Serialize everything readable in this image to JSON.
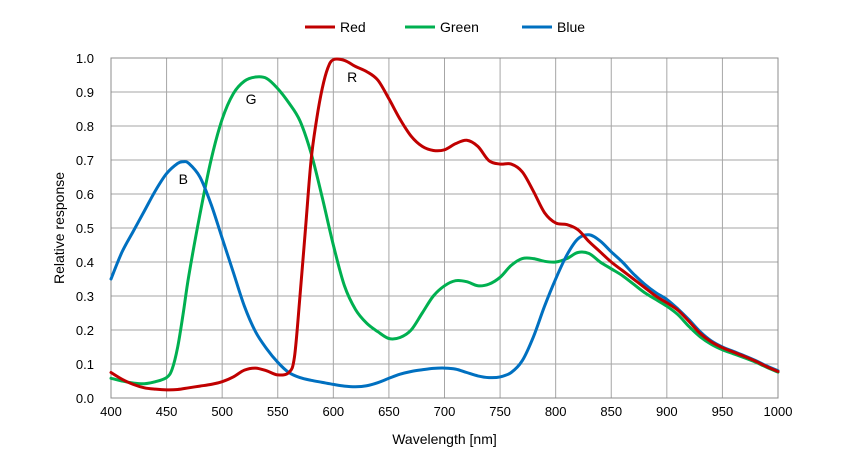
{
  "chart_data": {
    "type": "line",
    "xlabel": "Wavelength [nm]",
    "ylabel": "Relative response",
    "xlim": [
      400,
      1000
    ],
    "ylim": [
      0,
      1.0
    ],
    "xticks": [
      400,
      450,
      500,
      550,
      600,
      650,
      700,
      750,
      800,
      850,
      900,
      950,
      1000
    ],
    "yticks": [
      0.0,
      0.1,
      0.2,
      0.3,
      0.4,
      0.5,
      0.6,
      0.7,
      0.8,
      0.9,
      1.0
    ],
    "ytick_labels": [
      "0.0",
      "0.1",
      "0.2",
      "0.3",
      "0.4",
      "0.5",
      "0.6",
      "0.7",
      "0.8",
      "0.9",
      "1.0"
    ],
    "grid": true,
    "legend_position": "top-center",
    "series": [
      {
        "name": "Red",
        "color": "#c00000",
        "points": [
          [
            400,
            0.075
          ],
          [
            410,
            0.055
          ],
          [
            420,
            0.04
          ],
          [
            430,
            0.03
          ],
          [
            440,
            0.026
          ],
          [
            450,
            0.024
          ],
          [
            460,
            0.025
          ],
          [
            470,
            0.03
          ],
          [
            480,
            0.035
          ],
          [
            490,
            0.04
          ],
          [
            500,
            0.048
          ],
          [
            510,
            0.062
          ],
          [
            520,
            0.082
          ],
          [
            530,
            0.088
          ],
          [
            540,
            0.08
          ],
          [
            550,
            0.068
          ],
          [
            560,
            0.075
          ],
          [
            565,
            0.12
          ],
          [
            570,
            0.3
          ],
          [
            575,
            0.5
          ],
          [
            580,
            0.7
          ],
          [
            585,
            0.82
          ],
          [
            590,
            0.91
          ],
          [
            595,
            0.97
          ],
          [
            600,
            0.995
          ],
          [
            610,
            0.993
          ],
          [
            620,
            0.975
          ],
          [
            630,
            0.96
          ],
          [
            640,
            0.935
          ],
          [
            650,
            0.88
          ],
          [
            660,
            0.82
          ],
          [
            670,
            0.77
          ],
          [
            680,
            0.74
          ],
          [
            690,
            0.728
          ],
          [
            700,
            0.73
          ],
          [
            710,
            0.748
          ],
          [
            720,
            0.758
          ],
          [
            730,
            0.74
          ],
          [
            740,
            0.698
          ],
          [
            750,
            0.688
          ],
          [
            760,
            0.688
          ],
          [
            770,
            0.665
          ],
          [
            780,
            0.608
          ],
          [
            790,
            0.545
          ],
          [
            800,
            0.515
          ],
          [
            810,
            0.51
          ],
          [
            820,
            0.495
          ],
          [
            830,
            0.46
          ],
          [
            840,
            0.43
          ],
          [
            850,
            0.4
          ],
          [
            860,
            0.375
          ],
          [
            870,
            0.35
          ],
          [
            880,
            0.325
          ],
          [
            890,
            0.3
          ],
          [
            900,
            0.28
          ],
          [
            910,
            0.258
          ],
          [
            920,
            0.225
          ],
          [
            930,
            0.19
          ],
          [
            940,
            0.165
          ],
          [
            950,
            0.148
          ],
          [
            960,
            0.135
          ],
          [
            970,
            0.122
          ],
          [
            980,
            0.108
          ],
          [
            990,
            0.092
          ],
          [
            1000,
            0.078
          ]
        ]
      },
      {
        "name": "Green",
        "color": "#00b050",
        "points": [
          [
            400,
            0.058
          ],
          [
            410,
            0.05
          ],
          [
            420,
            0.044
          ],
          [
            430,
            0.042
          ],
          [
            440,
            0.048
          ],
          [
            450,
            0.06
          ],
          [
            455,
            0.085
          ],
          [
            460,
            0.15
          ],
          [
            465,
            0.25
          ],
          [
            470,
            0.36
          ],
          [
            480,
            0.54
          ],
          [
            490,
            0.7
          ],
          [
            500,
            0.82
          ],
          [
            510,
            0.895
          ],
          [
            520,
            0.932
          ],
          [
            530,
            0.944
          ],
          [
            540,
            0.94
          ],
          [
            550,
            0.91
          ],
          [
            560,
            0.868
          ],
          [
            570,
            0.815
          ],
          [
            580,
            0.72
          ],
          [
            590,
            0.59
          ],
          [
            600,
            0.45
          ],
          [
            610,
            0.33
          ],
          [
            620,
            0.26
          ],
          [
            630,
            0.22
          ],
          [
            640,
            0.195
          ],
          [
            650,
            0.175
          ],
          [
            660,
            0.178
          ],
          [
            670,
            0.2
          ],
          [
            680,
            0.25
          ],
          [
            690,
            0.3
          ],
          [
            700,
            0.33
          ],
          [
            710,
            0.345
          ],
          [
            720,
            0.342
          ],
          [
            730,
            0.33
          ],
          [
            740,
            0.335
          ],
          [
            750,
            0.355
          ],
          [
            760,
            0.39
          ],
          [
            770,
            0.41
          ],
          [
            780,
            0.41
          ],
          [
            790,
            0.402
          ],
          [
            800,
            0.4
          ],
          [
            810,
            0.41
          ],
          [
            820,
            0.428
          ],
          [
            830,
            0.425
          ],
          [
            840,
            0.4
          ],
          [
            850,
            0.38
          ],
          [
            860,
            0.36
          ],
          [
            870,
            0.335
          ],
          [
            880,
            0.31
          ],
          [
            890,
            0.29
          ],
          [
            900,
            0.27
          ],
          [
            910,
            0.245
          ],
          [
            920,
            0.21
          ],
          [
            930,
            0.18
          ],
          [
            940,
            0.158
          ],
          [
            950,
            0.142
          ],
          [
            960,
            0.13
          ],
          [
            970,
            0.118
          ],
          [
            980,
            0.105
          ],
          [
            990,
            0.09
          ],
          [
            1000,
            0.076
          ]
        ]
      },
      {
        "name": "Blue",
        "color": "#0070c0",
        "points": [
          [
            400,
            0.35
          ],
          [
            410,
            0.43
          ],
          [
            420,
            0.49
          ],
          [
            430,
            0.55
          ],
          [
            440,
            0.61
          ],
          [
            450,
            0.66
          ],
          [
            460,
            0.69
          ],
          [
            465,
            0.695
          ],
          [
            470,
            0.69
          ],
          [
            480,
            0.65
          ],
          [
            490,
            0.57
          ],
          [
            500,
            0.47
          ],
          [
            510,
            0.37
          ],
          [
            520,
            0.27
          ],
          [
            530,
            0.195
          ],
          [
            540,
            0.145
          ],
          [
            550,
            0.105
          ],
          [
            560,
            0.075
          ],
          [
            570,
            0.06
          ],
          [
            580,
            0.052
          ],
          [
            590,
            0.046
          ],
          [
            600,
            0.04
          ],
          [
            610,
            0.035
          ],
          [
            620,
            0.033
          ],
          [
            630,
            0.036
          ],
          [
            640,
            0.045
          ],
          [
            650,
            0.058
          ],
          [
            660,
            0.07
          ],
          [
            670,
            0.078
          ],
          [
            680,
            0.083
          ],
          [
            690,
            0.087
          ],
          [
            700,
            0.088
          ],
          [
            710,
            0.085
          ],
          [
            720,
            0.075
          ],
          [
            730,
            0.065
          ],
          [
            740,
            0.06
          ],
          [
            750,
            0.062
          ],
          [
            760,
            0.075
          ],
          [
            770,
            0.11
          ],
          [
            780,
            0.18
          ],
          [
            790,
            0.27
          ],
          [
            800,
            0.35
          ],
          [
            810,
            0.42
          ],
          [
            820,
            0.468
          ],
          [
            830,
            0.48
          ],
          [
            840,
            0.462
          ],
          [
            850,
            0.43
          ],
          [
            860,
            0.4
          ],
          [
            870,
            0.365
          ],
          [
            880,
            0.335
          ],
          [
            890,
            0.31
          ],
          [
            900,
            0.29
          ],
          [
            910,
            0.262
          ],
          [
            920,
            0.23
          ],
          [
            930,
            0.195
          ],
          [
            940,
            0.168
          ],
          [
            950,
            0.15
          ],
          [
            960,
            0.137
          ],
          [
            970,
            0.124
          ],
          [
            980,
            0.11
          ],
          [
            990,
            0.094
          ],
          [
            1000,
            0.08
          ]
        ]
      }
    ],
    "annotations": [
      {
        "text": "R",
        "x": 617,
        "y": 0.93
      },
      {
        "text": "G",
        "x": 526,
        "y": 0.865
      },
      {
        "text": "B",
        "x": 465,
        "y": 0.63
      }
    ]
  }
}
